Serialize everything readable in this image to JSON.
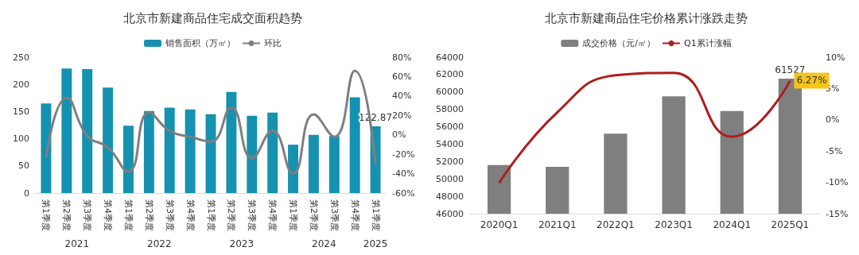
{
  "chart_data": [
    {
      "type": "bar",
      "title": "北京市新建商品住宅成交面积趋势",
      "categories": [
        "第1季度",
        "第2季度",
        "第3季度",
        "第4季度",
        "第1季度",
        "第2季度",
        "第3季度",
        "第4季度",
        "第1季度",
        "第2季度",
        "第3季度",
        "第4季度",
        "第1季度",
        "第2季度",
        "第3季度",
        "第4季度",
        "第1季度"
      ],
      "series": [
        {
          "name": "销售面积（万㎡）",
          "color": "#1592b0",
          "values": [
            165,
            229,
            228,
            194,
            124,
            151,
            157,
            154,
            145,
            186,
            142,
            148,
            89,
            107,
            105,
            176,
            122.87
          ],
          "value_labels": [
            null,
            null,
            null,
            null,
            null,
            null,
            null,
            null,
            null,
            null,
            null,
            null,
            null,
            null,
            null,
            null,
            "122.87"
          ]
        },
        {
          "name": "环比",
          "type": "line",
          "axis": "y2",
          "color": "#7f7f7f",
          "values": [
            -23,
            38,
            -1,
            -13,
            -38,
            23,
            4,
            -2,
            -7,
            28,
            -24,
            4,
            -40,
            21,
            -2,
            66,
            -30
          ]
        }
      ],
      "ylim": [
        0,
        250
      ],
      "yticks": [
        0,
        50,
        100,
        150,
        200,
        250
      ],
      "y2lim": [
        -60,
        80
      ],
      "y2ticks": [
        {
          "value": -60,
          "label": "-60%"
        },
        {
          "value": -40,
          "label": "-40%"
        },
        {
          "value": -20,
          "label": "-20%"
        },
        {
          "value": 0,
          "label": "0%"
        },
        {
          "value": 20,
          "label": "20%"
        },
        {
          "value": 40,
          "label": "40%"
        },
        {
          "value": 60,
          "label": "60%"
        },
        {
          "value": 80,
          "label": "80%"
        }
      ],
      "annotations": [
        "2021",
        "2022",
        "2023",
        "2024",
        "2025"
      ],
      "legend": "top",
      "grid": false,
      "marker": "none"
    },
    {
      "type": "bar",
      "title": "北京市新建商品住宅价格累计涨跌走势",
      "categories": [
        "2020Q1",
        "2021Q1",
        "2022Q1",
        "2023Q1",
        "2024Q1",
        "2025Q1"
      ],
      "series": [
        {
          "name": "成交价格（元/㎡）",
          "color": "#7f7f7f",
          "values": [
            51600,
            51400,
            55200,
            59500,
            57800,
            61527
          ],
          "value_labels": [
            null,
            null,
            null,
            null,
            null,
            "61527"
          ]
        },
        {
          "name": "Q1累计涨幅",
          "type": "line",
          "axis": "y2",
          "color": "#b01c1c",
          "values": [
            -10.1,
            1.2,
            7.1,
            7.5,
            -2.7,
            6.27
          ],
          "value_labels": [
            null,
            null,
            null,
            null,
            null,
            "6.27%"
          ]
        }
      ],
      "ylim": [
        46000,
        64000
      ],
      "yticks": [
        46000,
        48000,
        50000,
        52000,
        54000,
        56000,
        58000,
        60000,
        62000,
        64000
      ],
      "y2lim": [
        -15,
        10
      ],
      "y2ticks": [
        {
          "value": -15,
          "label": "-15%"
        },
        {
          "value": -10,
          "label": "-10%"
        },
        {
          "value": -5,
          "label": "-5%"
        },
        {
          "value": 0,
          "label": "0%"
        },
        {
          "value": 5,
          "label": "5%"
        },
        {
          "value": 10,
          "label": "10%"
        }
      ],
      "legend": "top",
      "grid": false,
      "marker": "none"
    }
  ]
}
